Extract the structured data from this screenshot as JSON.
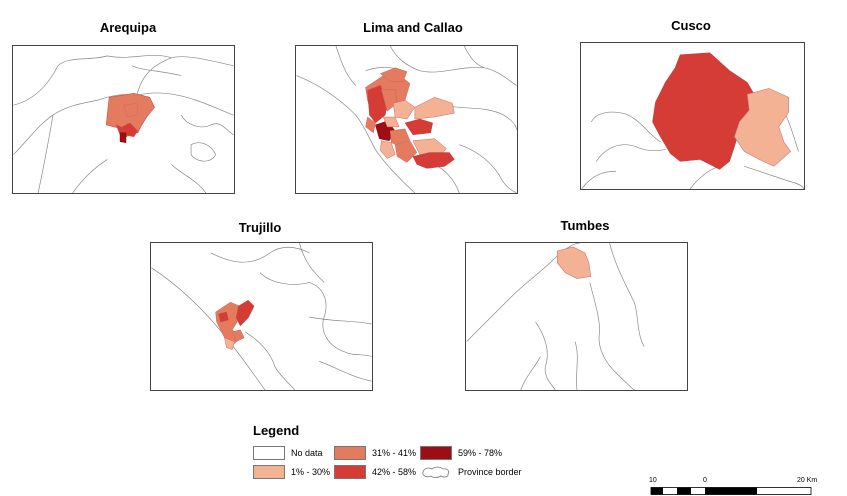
{
  "maps": [
    {
      "id": "arequipa",
      "title": "Arequipa"
    },
    {
      "id": "lima",
      "title": "Lima and Callao"
    },
    {
      "id": "cusco",
      "title": "Cusco"
    },
    {
      "id": "trujillo",
      "title": "Trujillo"
    },
    {
      "id": "tumbes",
      "title": "Tumbes"
    }
  ],
  "legend": {
    "title": "Legend",
    "items": [
      {
        "label": "No data",
        "color": "#ffffff"
      },
      {
        "label": "1% - 30%",
        "color": "#f3b294"
      },
      {
        "label": "31% - 41%",
        "color": "#e57b5e"
      },
      {
        "label": "42% - 58%",
        "color": "#d63c36"
      },
      {
        "label": "59% - 78%",
        "color": "#9f0d14"
      },
      {
        "label": "Province border",
        "color": "#ffffff"
      }
    ]
  },
  "scale_bar": {
    "labels": [
      "10",
      "0",
      "20 Km"
    ]
  }
}
